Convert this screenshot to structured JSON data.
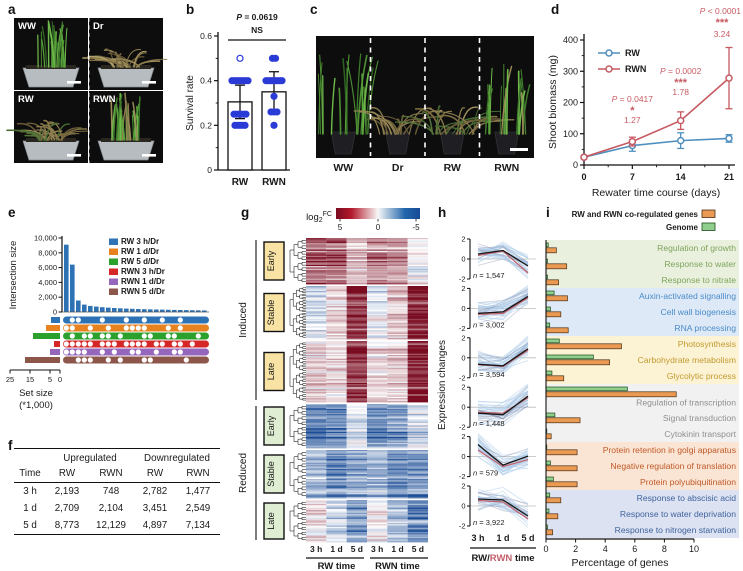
{
  "panels": {
    "a": {
      "label": "a",
      "photos": [
        {
          "name": "WW",
          "style": "green_upright"
        },
        {
          "name": "Dr",
          "style": "dry_sprawl"
        },
        {
          "name": "RW",
          "style": "mixed_sprawl"
        },
        {
          "name": "RWN",
          "style": "recovering_upright"
        }
      ]
    },
    "b": {
      "label": "b"
    },
    "c": {
      "label": "c",
      "sections": [
        {
          "name": "WW",
          "style": "green_upright"
        },
        {
          "name": "Dr",
          "style": "dry_sprawl"
        },
        {
          "name": "RW",
          "style": "mixed_sprawl"
        },
        {
          "name": "RWN",
          "style": "recovering_upright"
        }
      ]
    },
    "d": {
      "label": "d"
    },
    "e": {
      "label": "e"
    },
    "f": {
      "label": "f"
    },
    "g": {
      "label": "g"
    },
    "h": {
      "label": "h"
    },
    "i": {
      "label": "i"
    }
  },
  "chart_data": {
    "b": {
      "type": "bar",
      "title": "",
      "ylabel": "Survival rate",
      "ylim": [
        0,
        0.6
      ],
      "yticks": [
        0,
        0.2,
        0.4,
        0.6
      ],
      "categories": [
        "RW",
        "RWN"
      ],
      "values": [
        0.305,
        0.35
      ],
      "errors": [
        0.075,
        0.09
      ],
      "p_text": "P = 0.0619",
      "ns_text": "NS",
      "dot_color": "#2B3BD6",
      "points": {
        "RW": [
          [
            0.5,
            0,
            1
          ],
          [
            0.4,
            -8,
            0
          ],
          [
            0.4,
            -6,
            0
          ],
          [
            0.4,
            -4,
            0
          ],
          [
            0.4,
            -2,
            0
          ],
          [
            0.4,
            0,
            0
          ],
          [
            0.4,
            2,
            0
          ],
          [
            0.4,
            4,
            0
          ],
          [
            0.4,
            6,
            0
          ],
          [
            0.4,
            8,
            0
          ],
          [
            0.25,
            -6,
            0
          ],
          [
            0.25,
            -3.5,
            0
          ],
          [
            0.25,
            -1,
            0
          ],
          [
            0.25,
            1.5,
            0
          ],
          [
            0.25,
            4,
            0
          ],
          [
            0.25,
            6,
            0
          ],
          [
            0.2,
            -5,
            0
          ],
          [
            0.2,
            -2.5,
            0
          ],
          [
            0.2,
            0,
            0
          ],
          [
            0.2,
            2.5,
            0
          ],
          [
            0.2,
            5,
            0
          ]
        ],
        "RWN": [
          [
            0.5,
            -1.5,
            0
          ],
          [
            0.5,
            1.5,
            0
          ],
          [
            0.4,
            -8,
            0
          ],
          [
            0.4,
            -6,
            0
          ],
          [
            0.4,
            -4,
            0
          ],
          [
            0.4,
            -2,
            0
          ],
          [
            0.4,
            0,
            0
          ],
          [
            0.4,
            2,
            0
          ],
          [
            0.4,
            4,
            0
          ],
          [
            0.4,
            6,
            0
          ],
          [
            0.4,
            8,
            0
          ],
          [
            0.33,
            0,
            0
          ],
          [
            0.26,
            -3,
            0
          ],
          [
            0.26,
            0,
            0
          ],
          [
            0.26,
            3,
            0
          ],
          [
            0.2,
            0,
            0
          ]
        ]
      }
    },
    "d": {
      "type": "line",
      "xlabel": "Rewater time course (days)",
      "ylabel": "Shoot biomass (mg)",
      "x": [
        0,
        7,
        14,
        21
      ],
      "xticks": [
        "0",
        "7",
        "14",
        "21"
      ],
      "yticks": [
        "0",
        "100",
        "200",
        "300",
        "400"
      ],
      "ylim": [
        0,
        400
      ],
      "series": [
        {
          "name": "RW",
          "color": "#4E8FC0",
          "values": [
            25,
            62,
            78,
            85
          ],
          "errors": [
            5,
            18,
            25,
            12
          ]
        },
        {
          "name": "RWN",
          "color": "#C75A62",
          "values": [
            25,
            75,
            142,
            278
          ],
          "errors": [
            5,
            14,
            28,
            98
          ]
        }
      ],
      "annotation_color": "#C75A62",
      "annotations": [
        {
          "x": 7,
          "p": "P = 0.0417",
          "stars": "*",
          "fold": "1.27"
        },
        {
          "x": 14,
          "p": "P = 0.0002",
          "stars": "***",
          "fold": "1.78"
        },
        {
          "x": 21,
          "p": "P < 0.0001",
          "stars": "***",
          "fold": "3.24"
        }
      ]
    },
    "e": {
      "type": "upset",
      "ylabel": "Intersection size",
      "yticks": [
        "0",
        "2,000",
        "4,000",
        "6,000",
        "8,000",
        "10,000"
      ],
      "ymax": 10000,
      "bar_color": "#2D72B4",
      "intersection_sizes": [
        9100,
        6400,
        1550,
        1000,
        820,
        730,
        650,
        590,
        540,
        500,
        460,
        430,
        400,
        380,
        360,
        340,
        320,
        300,
        285,
        270,
        255,
        240,
        225,
        210
      ],
      "sets": [
        {
          "name": "RW 3 h/Dr",
          "color": "#2D72B4",
          "size_k": 4.5,
          "pattern": "100111011101101101101111"
        },
        {
          "name": "RW 1 d/Dr",
          "color": "#E8821E",
          "size_k": 7.0,
          "pattern": "001101101100001110101111"
        },
        {
          "name": "RW 5 d/Dr",
          "color": "#2CA02C",
          "size_k": 13.5,
          "pattern": "101001001011100110011101"
        },
        {
          "name": "RWN 3 h/Dr",
          "color": "#D62728",
          "size_k": 3.0,
          "pattern": "000001000100001001001011"
        },
        {
          "name": "RWN 1 d/Dr",
          "color": "#9467BD",
          "size_k": 5.0,
          "pattern": "000011010110011011001111"
        },
        {
          "name": "RWN 5 d/Dr",
          "color": "#8C564B",
          "size_k": 17.5,
          "pattern": "110001101011100111110111"
        }
      ],
      "setsize_ticks": [
        "25",
        "15",
        "5",
        "0"
      ],
      "setsize_label_1": "Set size",
      "setsize_label_2": "(*1,000)"
    },
    "f": {
      "type": "table",
      "group_headers": [
        "Upregulated",
        "Downregulated"
      ],
      "col_headers": [
        "Time",
        "RW",
        "RWN",
        "RW",
        "RWN"
      ],
      "rows": [
        [
          "3 h",
          "2,193",
          "748",
          "2,782",
          "1,477"
        ],
        [
          "1 d",
          "2,709",
          "2,104",
          "3,451",
          "2,549"
        ],
        [
          "5 d",
          "8,773",
          "12,129",
          "4,897",
          "7,134"
        ]
      ]
    },
    "g": {
      "type": "heatmap",
      "colorbar": {
        "label_parts": [
          "log",
          "2",
          "FC"
        ],
        "ticks": [
          "5",
          "0",
          "-5"
        ]
      },
      "columns": [
        "3 h",
        "1 d",
        "5 d",
        "3 h",
        "1 d",
        "5 d"
      ],
      "col_groups": [
        "RW time",
        "RWN time"
      ],
      "group_labels": [
        "Induced",
        "Reduced"
      ],
      "cluster_box_colors": {
        "Induced": "#F9E3A4",
        "Reduced": "#DFEDD2"
      },
      "blocks": [
        {
          "group": "Induced",
          "name": "Early",
          "rows": 36,
          "h": 46,
          "means": [
            2.2,
            2.4,
            0.9,
            1.7,
            1.5,
            0.0
          ]
        },
        {
          "group": "Induced",
          "name": "Stable",
          "rows": 42,
          "h": 53,
          "means": [
            -0.8,
            0.5,
            3.6,
            -0.6,
            0.7,
            4.2
          ]
        },
        {
          "group": "Induced",
          "name": "Late",
          "rows": 48,
          "h": 61,
          "means": [
            0.6,
            0.4,
            3.2,
            0.4,
            0.6,
            3.9
          ]
        },
        {
          "group": "Reduced",
          "name": "Early",
          "rows": 35,
          "h": 44,
          "means": [
            -2.4,
            -2.2,
            -0.4,
            -2.2,
            -1.8,
            -0.7
          ]
        },
        {
          "group": "Reduced",
          "name": "Stable",
          "rows": 38,
          "h": 48,
          "means": [
            -1.2,
            -2.3,
            -1.6,
            -1.3,
            -2.3,
            -2.1
          ]
        },
        {
          "group": "Reduced",
          "name": "Late",
          "rows": 33,
          "h": 42,
          "means": [
            0.3,
            -0.6,
            -1.6,
            0.2,
            -0.9,
            -2.2
          ]
        }
      ]
    },
    "h": {
      "type": "line_small_multiples",
      "ylabel": "Expression changes",
      "ylim": [
        -2,
        2
      ],
      "yticks": [
        "2",
        "0",
        "-2"
      ],
      "xticks": [
        "3 h",
        "1 d",
        "5 d"
      ],
      "xlabel_parts": [
        {
          "t": "RW/",
          "c": "#1a1a1a"
        },
        {
          "t": "RWN",
          "c": "#C2606C"
        },
        {
          "t": " time",
          "c": "#1a1a1a"
        }
      ],
      "line_colors": {
        "black": "#151515",
        "red": "#C2606C"
      },
      "plots": [
        {
          "n": "n = 1,547",
          "black": [
            0.5,
            0.85,
            -0.7
          ],
          "red": [
            0.35,
            0.8,
            -1.4
          ]
        },
        {
          "n": "n = 3,002",
          "black": [
            -0.5,
            -0.35,
            1.2
          ],
          "red": [
            -0.6,
            -0.5,
            1.05
          ]
        },
        {
          "n": "n = 3,594",
          "black": [
            -0.65,
            -0.8,
            0.9
          ],
          "red": [
            -0.7,
            -0.85,
            0.75
          ]
        },
        {
          "n": "n = 1,448",
          "black": [
            -0.6,
            -0.75,
            1.1
          ],
          "red": [
            -0.5,
            -0.6,
            0.95
          ]
        },
        {
          "n": "n = 579",
          "black": [
            1.2,
            -0.85,
            0.05
          ],
          "red": [
            0.65,
            -1.0,
            -0.3
          ]
        },
        {
          "n": "n = 3,922",
          "black": [
            0.7,
            0.6,
            -1.0
          ],
          "red": [
            0.55,
            0.4,
            -1.3
          ]
        }
      ]
    },
    "i": {
      "type": "bar_horizontal",
      "xlabel": "Percentage of genes",
      "xlim": [
        0,
        10
      ],
      "xticks": [
        "0",
        "2",
        "4",
        "6",
        "8",
        "10"
      ],
      "legend": [
        {
          "label": "RW and RWN co-regulated genes",
          "color": "#EA9A52",
          "stroke": "#4A2F14"
        },
        {
          "label": "Genome",
          "color": "#8FCE8C",
          "stroke": "#1E4D1E"
        }
      ],
      "groups": [
        {
          "bg": "#E9F1DE",
          "text_color": "#7FA35B",
          "items": [
            {
              "label": "Regulation of growth",
              "genome": 0.15,
              "coreg": 0.7
            },
            {
              "label": "Response to water",
              "genome": 0.1,
              "coreg": 1.4
            },
            {
              "label": "Response to nitrate",
              "genome": 0.1,
              "coreg": 0.85
            }
          ]
        },
        {
          "bg": "#DDE9F6",
          "text_color": "#4B8BC9",
          "items": [
            {
              "label": "Auxin-activated signalling",
              "genome": 0.55,
              "coreg": 1.45
            },
            {
              "label": "Cell wall biogenesis",
              "genome": 0.3,
              "coreg": 1.0
            },
            {
              "label": "RNA processing",
              "genome": 0.25,
              "coreg": 1.5
            }
          ]
        },
        {
          "bg": "#FCF3D5",
          "text_color": "#C2992E",
          "items": [
            {
              "label": "Photosynthesis",
              "genome": 0.9,
              "coreg": 5.1
            },
            {
              "label": "Carbohydrate metabolism",
              "genome": 3.2,
              "coreg": 4.3
            },
            {
              "label": "Glycolytic process",
              "genome": 0.4,
              "coreg": 1.2
            }
          ]
        },
        {
          "bg": "#F1F1F1",
          "text_color": "#8F8F8F",
          "items": [
            {
              "label": "Regulation of transcription",
              "genome": 5.5,
              "coreg": 8.8
            },
            {
              "label": "Signal transduction",
              "genome": 0.6,
              "coreg": 2.3
            },
            {
              "label": "Cytokinin transport",
              "genome": 0.05,
              "coreg": 0.35
            }
          ]
        },
        {
          "bg": "#FAE4D4",
          "text_color": "#C05A28",
          "items": [
            {
              "label": "Protein retention in golgi apparatus",
              "genome": 0.05,
              "coreg": 2.1
            },
            {
              "label": "Negative regulation of translation",
              "genome": 0.3,
              "coreg": 2.1
            },
            {
              "label": "Protein polyubiquitination",
              "genome": 0.5,
              "coreg": 2.1
            }
          ]
        },
        {
          "bg": "#DCE2F1",
          "text_color": "#3F639E",
          "items": [
            {
              "label": "Response to abscisic acid",
              "genome": 0.25,
              "coreg": 1.0
            },
            {
              "label": "Response to water deprivation",
              "genome": 0.2,
              "coreg": 0.8
            },
            {
              "label": "Response to nitrogen starvation",
              "genome": 0.1,
              "coreg": 0.45
            }
          ]
        }
      ]
    }
  }
}
